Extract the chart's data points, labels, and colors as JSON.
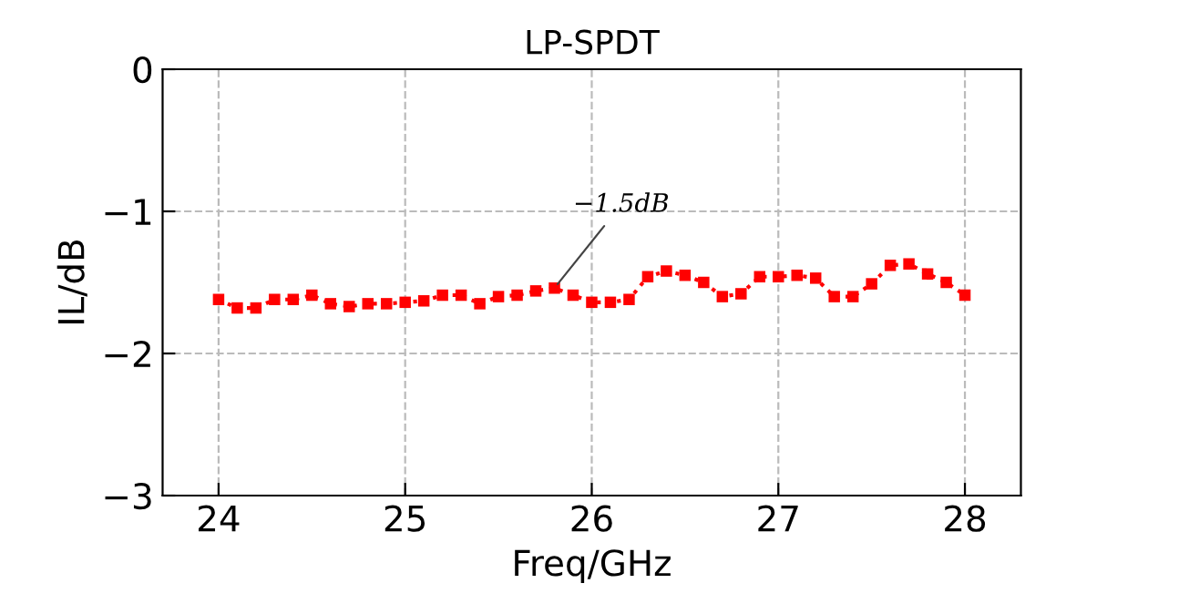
{
  "chart_data": {
    "type": "line",
    "title": "LP-SPDT",
    "xlabel": "Freq/GHz",
    "ylabel": "IL/dB",
    "x": [
      24.0,
      24.1,
      24.2,
      24.3,
      24.4,
      24.5,
      24.6,
      24.7,
      24.8,
      24.9,
      25.0,
      25.1,
      25.2,
      25.3,
      25.4,
      25.5,
      25.6,
      25.7,
      25.8,
      25.9,
      26.0,
      26.1,
      26.2,
      26.3,
      26.4,
      26.5,
      26.6,
      26.7,
      26.8,
      26.9,
      27.0,
      27.1,
      27.2,
      27.3,
      27.4,
      27.5,
      27.6,
      27.7,
      27.8,
      27.9,
      28.0
    ],
    "series": [
      {
        "color": "#ff0000",
        "values": [
          -1.62,
          -1.68,
          -1.68,
          -1.62,
          -1.62,
          -1.59,
          -1.65,
          -1.67,
          -1.65,
          -1.65,
          -1.64,
          -1.63,
          -1.59,
          -1.59,
          -1.65,
          -1.6,
          -1.59,
          -1.56,
          -1.54,
          -1.59,
          -1.64,
          -1.64,
          -1.62,
          -1.46,
          -1.42,
          -1.45,
          -1.5,
          -1.6,
          -1.58,
          -1.46,
          -1.46,
          -1.45,
          -1.47,
          -1.6,
          -1.6,
          -1.51,
          -1.38,
          -1.37,
          -1.44,
          -1.5,
          -1.59
        ]
      }
    ],
    "marker": "square",
    "line_style": "dotted",
    "grid": true,
    "legend": false,
    "xlim": [
      23.7,
      28.3
    ],
    "xticks": [
      24,
      25,
      26,
      27,
      28
    ],
    "ylim": [
      -3,
      0
    ],
    "yticks": [
      -3,
      -2,
      -1,
      0
    ],
    "annotations": [
      {
        "text": "−1.5dB",
        "x": 25.8,
        "y": -1.54
      }
    ]
  }
}
